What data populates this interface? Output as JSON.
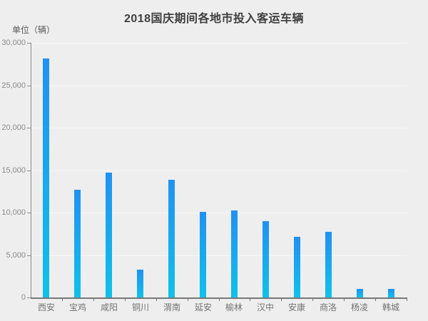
{
  "title": "2018国庆期间各地市投入客运车辆",
  "unit_label": "单位（辆）",
  "colors": {
    "background": "#eeeeee",
    "bar_gradient_top": "#2191f2",
    "bar_gradient_bottom": "#10c1e9",
    "axis": "#787878",
    "gridline": "#f7f7f7",
    "title_text": "#3f3f3f",
    "y_tick_text": "#8a8a8a",
    "category_text": "#737373"
  },
  "chart_data": {
    "type": "bar",
    "title": "2018国庆期间各地市投入客运车辆",
    "ylabel": "单位（辆）",
    "categories": [
      "西安",
      "宝鸡",
      "咸阳",
      "铜川",
      "渭南",
      "延安",
      "榆林",
      "汉中",
      "安康",
      "商洛",
      "杨凌",
      "韩城"
    ],
    "values": [
      28150,
      12700,
      14700,
      3250,
      13900,
      10100,
      10250,
      8950,
      7150,
      7750,
      1000,
      1000
    ],
    "ylim": [
      0,
      30000
    ],
    "yticks": [
      0,
      5000,
      10000,
      15000,
      20000,
      25000,
      30000
    ],
    "ytick_labels": [
      "0",
      "5,000",
      "10,000",
      "15,000",
      "20,000",
      "25,000",
      "30,000"
    ],
    "grid": true,
    "legend": false,
    "xlabel": ""
  }
}
